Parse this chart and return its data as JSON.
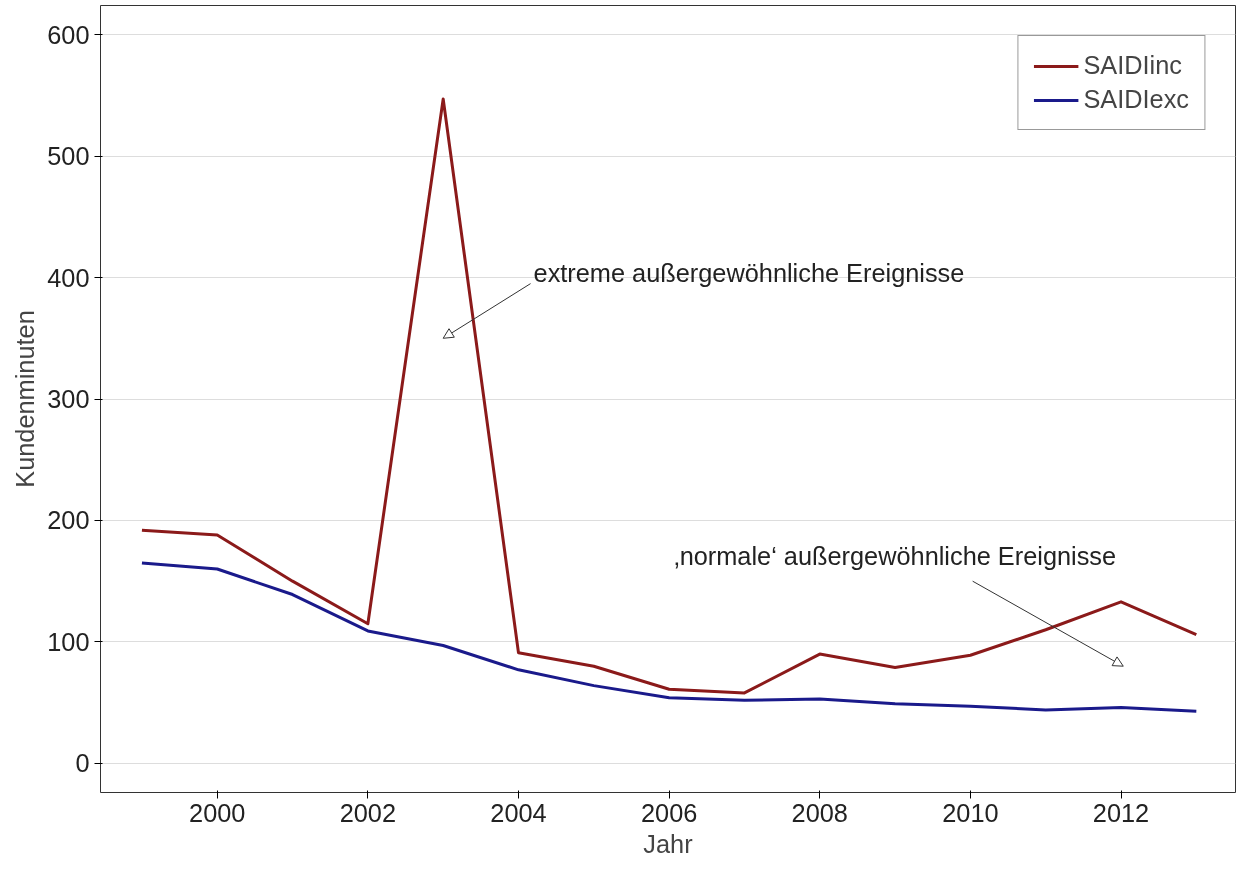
{
  "chart_data": {
    "type": "line",
    "xlabel": "Jahr",
    "ylabel": "Kundenminuten",
    "x": [
      1999,
      2000,
      2001,
      2002,
      2003,
      2004,
      2005,
      2006,
      2007,
      2008,
      2009,
      2010,
      2011,
      2012,
      2013
    ],
    "series": [
      {
        "name": "SAIDIinc",
        "color": "#8b1a1a",
        "values": [
          192,
          188,
          150,
          115,
          547,
          91,
          80,
          61,
          58,
          90,
          79,
          89,
          110,
          133,
          106
        ]
      },
      {
        "name": "SAIDIexc",
        "color": "#1a1a8b",
        "values": [
          165,
          160,
          139,
          109,
          97,
          77,
          64,
          54,
          52,
          53,
          49,
          47,
          44,
          46,
          43
        ]
      }
    ],
    "xlim": [
      1998.45,
      2013.52
    ],
    "xticks": [
      2000,
      2002,
      2004,
      2006,
      2008,
      2010,
      2012
    ],
    "ylim": [
      -24,
      624
    ],
    "yticks": [
      0,
      100,
      200,
      300,
      400,
      500,
      600
    ],
    "grid": "y",
    "legend": "top right",
    "marker": "none",
    "line_style": "solid",
    "annotations": [
      "extreme außergewöhnliche Ereignisse",
      "‚normale‘ außergewöhnliche Ereignisse"
    ]
  }
}
